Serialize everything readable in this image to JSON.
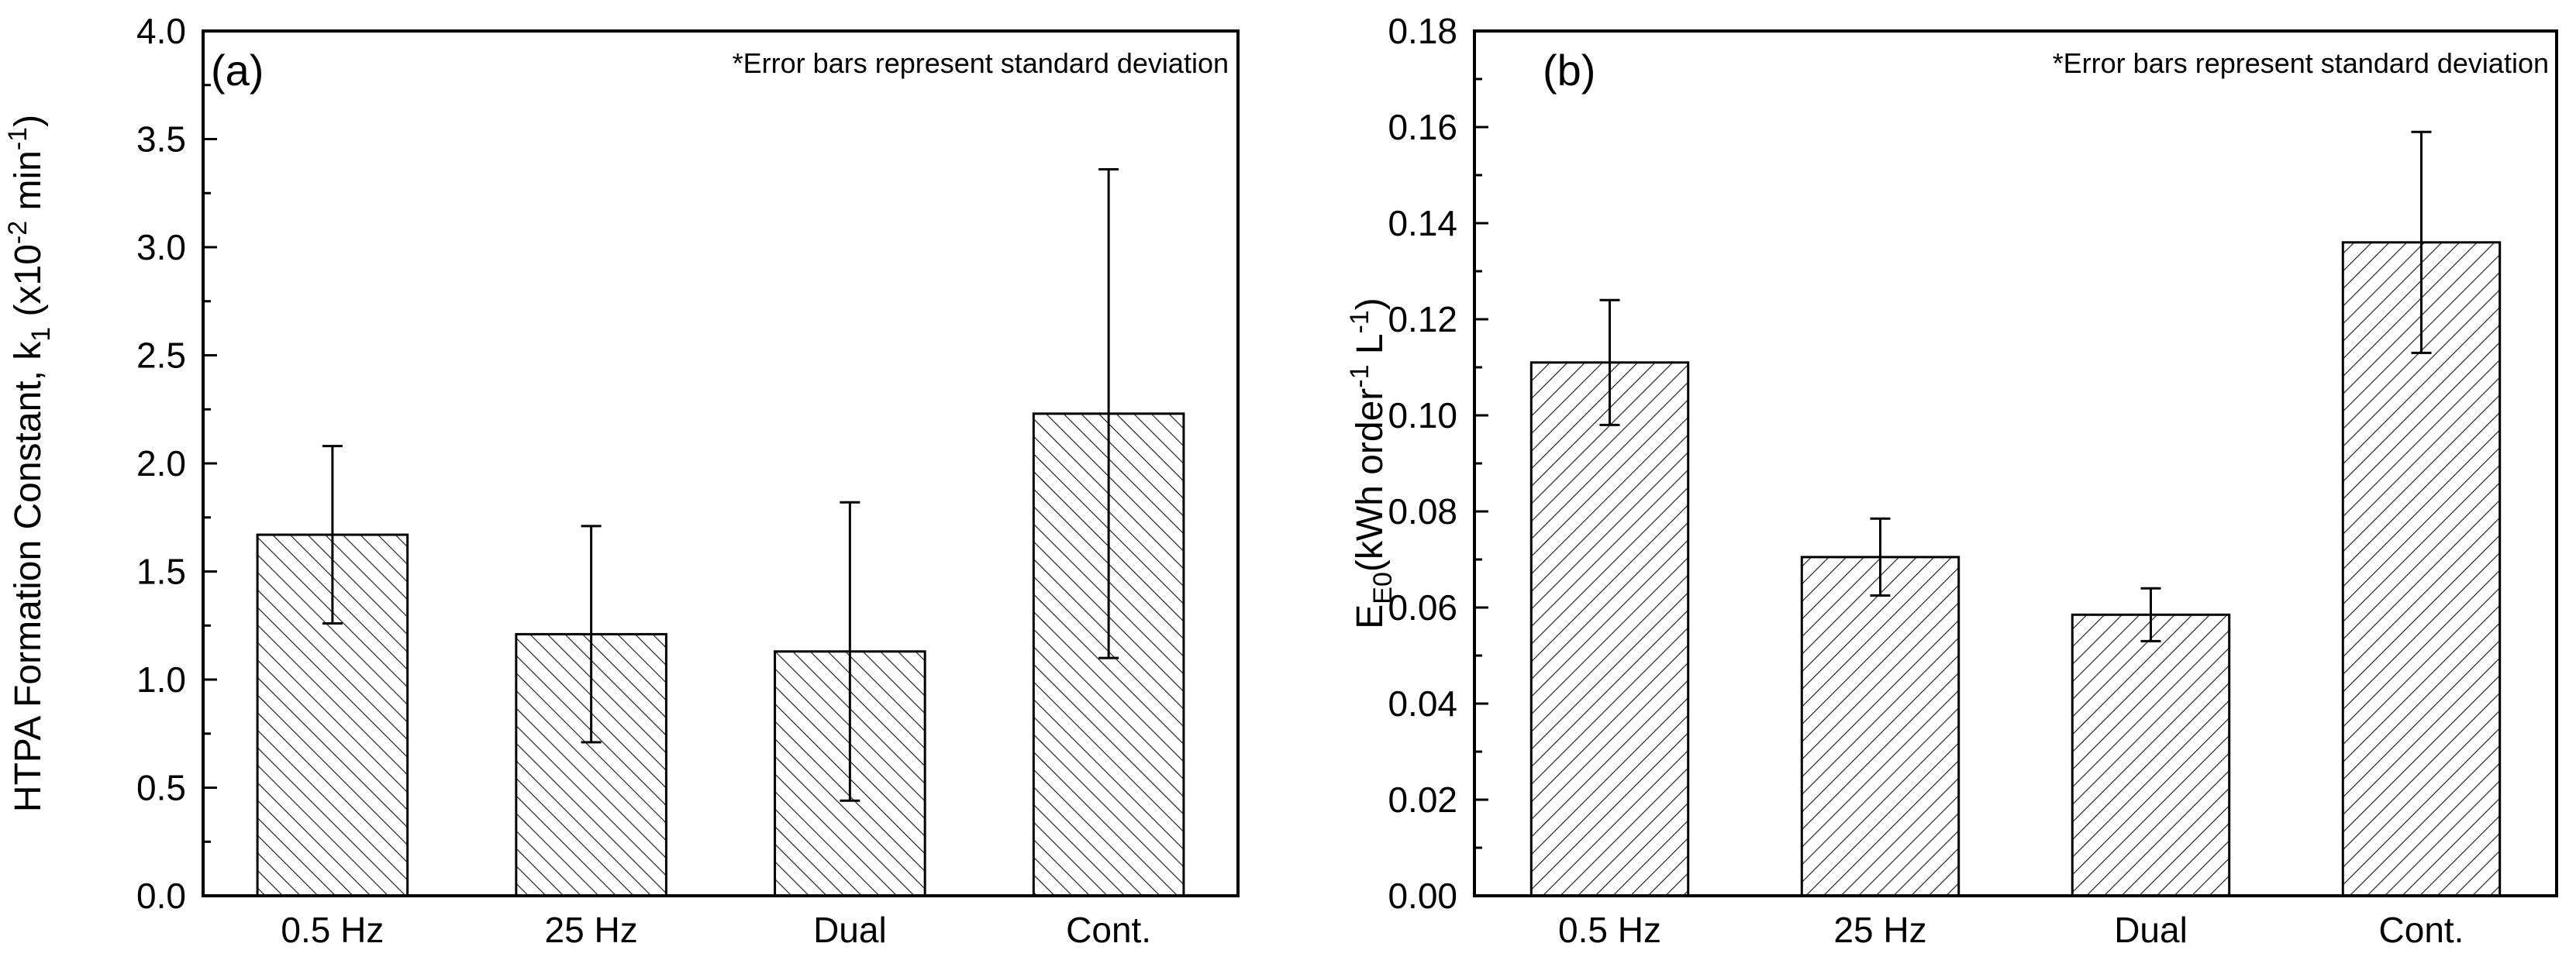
{
  "chart_data": [
    {
      "panel_label": "(a)",
      "type": "bar",
      "categories": [
        "0.5 Hz",
        "25 Hz",
        "Dual",
        "Cont."
      ],
      "values": [
        1.67,
        1.21,
        1.13,
        2.23
      ],
      "error": [
        0.41,
        0.5,
        0.69,
        1.13
      ],
      "ylabel_main": "HTPA Formation Constant, k",
      "ylabel_sub": "1",
      "ylabel_rest": " (x10",
      "ylabel_exp1": "-2",
      "ylabel_unit": " min",
      "ylabel_exp2": "-1",
      "ylabel_close": ")",
      "ylim": [
        0,
        4.0
      ],
      "yticks": [
        "0.0",
        "0.5",
        "1.0",
        "1.5",
        "2.0",
        "2.5",
        "3.0",
        "3.5",
        "4.0"
      ],
      "ytick_values": [
        0,
        0.5,
        1.0,
        1.5,
        2.0,
        2.5,
        3.0,
        3.5,
        4.0
      ],
      "note": "*Error bars represent standard deviation",
      "hatch": "backslash"
    },
    {
      "panel_label": "(b)",
      "type": "bar",
      "categories": [
        "0.5 Hz",
        "25 Hz",
        "Dual",
        "Cont."
      ],
      "values": [
        0.111,
        0.0705,
        0.0585,
        0.136
      ],
      "error": [
        0.013,
        0.008,
        0.0055,
        0.023
      ],
      "ylabel_main": "E",
      "ylabel_sub": "E0",
      "ylabel_rest": "(kWh order",
      "ylabel_exp1": "-1",
      "ylabel_unit": " L",
      "ylabel_exp2": "-1",
      "ylabel_close": ")",
      "ylim": [
        0,
        0.18
      ],
      "yticks": [
        "0.00",
        "0.02",
        "0.04",
        "0.06",
        "0.08",
        "0.10",
        "0.12",
        "0.14",
        "0.16",
        "0.18"
      ],
      "ytick_values": [
        0,
        0.02,
        0.04,
        0.06,
        0.08,
        0.1,
        0.12,
        0.14,
        0.16,
        0.18
      ],
      "note": "*Error bars represent standard deviation",
      "hatch": "slash"
    }
  ]
}
